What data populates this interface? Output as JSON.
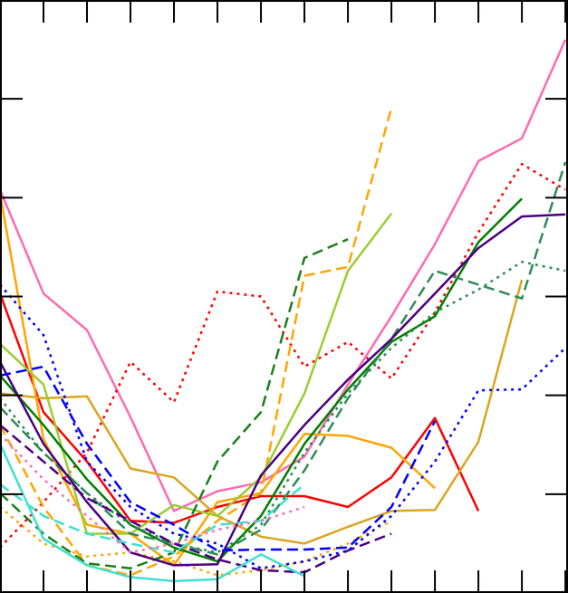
{
  "chart_data": {
    "type": "line",
    "x": [
      0,
      1,
      2,
      3,
      4,
      5,
      6,
      7,
      8,
      9,
      10,
      11,
      12,
      13
    ],
    "xlim": [
      0,
      13.06
    ],
    "ylim": [
      0,
      6
    ],
    "xticks": [
      0,
      1,
      2,
      3,
      4,
      5,
      6,
      7,
      8,
      9,
      10,
      11,
      12,
      13
    ],
    "yticks": [
      1,
      2,
      3,
      4,
      5
    ],
    "grid": false,
    "series": [
      {
        "color": "#ff69b4",
        "dash": "solid",
        "values": [
          4.08,
          3.03,
          2.66,
          1.78,
          0.83,
          1.03,
          1.12,
          1.38,
          2.11,
          2.8,
          3.53,
          4.37,
          4.6,
          5.6
        ]
      },
      {
        "color": "#ff0000",
        "dash": "solid",
        "values": [
          3.03,
          1.83,
          1.33,
          0.73,
          0.71,
          0.87,
          0.98,
          0.98,
          0.87,
          1.17,
          1.77,
          0.83,
          null,
          null
        ]
      },
      {
        "color": "#ff0000",
        "dash": "dotted",
        "values": [
          0.46,
          0.92,
          1.42,
          2.34,
          1.93,
          3.05,
          3.0,
          2.29,
          2.54,
          2.17,
          2.84,
          3.65,
          4.34,
          4.08
        ]
      },
      {
        "color": "#ffa500",
        "dash": "solid",
        "values": [
          4.04,
          1.56,
          0.69,
          0.6,
          0.28,
          0.92,
          1.01,
          1.61,
          1.59,
          1.47,
          1.06,
          null,
          null,
          null
        ]
      },
      {
        "color": "#ffa500",
        "dash": "dashed",
        "values": [
          1.7,
          0.87,
          0.28,
          0.18,
          0.37,
          0.73,
          1.01,
          3.21,
          3.3,
          4.91,
          null,
          null,
          null,
          null
        ]
      },
      {
        "color": "#ffa500",
        "dash": "dotted",
        "values": [
          0.87,
          0.5,
          0.37,
          0.41,
          0.32,
          0.18,
          0.23,
          0.32,
          0.5,
          0.73,
          null,
          null,
          null,
          null
        ]
      },
      {
        "color": "#daa520",
        "dash": "solid",
        "values": [
          2.02,
          1.97,
          1.99,
          1.26,
          1.17,
          0.78,
          0.57,
          0.5,
          0.67,
          0.83,
          0.84,
          1.53,
          3.17,
          null
        ]
      },
      {
        "color": "#9acd32",
        "dash": "solid",
        "values": [
          2.52,
          2.11,
          0.6,
          0.6,
          0.89,
          0.78,
          1.17,
          2.02,
          3.26,
          3.84,
          null,
          null,
          null,
          null
        ]
      },
      {
        "color": "#008000",
        "dash": "solid",
        "values": [
          2.2,
          1.7,
          1.15,
          0.69,
          0.46,
          0.32,
          0.78,
          1.51,
          2.06,
          2.54,
          2.8,
          3.55,
          3.99,
          null
        ]
      },
      {
        "color": "#1a7f1a",
        "dash": "dashed",
        "values": [
          1.01,
          0.6,
          0.3,
          0.25,
          0.41,
          1.33,
          1.83,
          3.39,
          3.58,
          null,
          null,
          null,
          null,
          null
        ]
      },
      {
        "color": "#2e8b57",
        "dash": "dashed",
        "values": [
          1.88,
          1.42,
          1.01,
          0.6,
          0.5,
          0.39,
          0.64,
          1.24,
          1.97,
          2.57,
          3.26,
          3.12,
          2.98,
          4.36
        ]
      },
      {
        "color": "#2e8b57",
        "dash": "dotted",
        "values": [
          1.97,
          1.42,
          1.01,
          0.69,
          0.5,
          0.41,
          0.69,
          1.42,
          2.02,
          2.48,
          2.84,
          3.07,
          3.35,
          3.26
        ]
      },
      {
        "color": "#4b0082",
        "dash": "solid",
        "values": [
          2.34,
          1.51,
          0.92,
          0.41,
          0.28,
          0.29,
          1.19,
          1.7,
          2.16,
          2.57,
          3.03,
          3.49,
          3.81,
          3.83
        ]
      },
      {
        "color": "#4b0082",
        "dash": "dashed",
        "values": [
          1.7,
          1.33,
          0.96,
          0.73,
          0.5,
          0.34,
          0.23,
          0.21,
          0.43,
          0.6,
          null,
          null,
          null,
          null
        ]
      },
      {
        "color": "#0000ff",
        "dash": "dashed",
        "values": [
          2.2,
          2.29,
          1.51,
          0.92,
          0.69,
          0.43,
          0.44,
          0.44,
          0.46,
          0.87,
          1.74,
          null,
          null,
          null
        ]
      },
      {
        "color": "#0000ff",
        "dash": "dotted",
        "values": [
          3.12,
          2.61,
          1.33,
          0.87,
          0.6,
          0.5,
          0.25,
          0.32,
          0.43,
          0.78,
          1.33,
          2.05,
          2.06,
          2.48
        ]
      },
      {
        "color": "#40e0d0",
        "dash": "solid",
        "values": [
          1.51,
          0.55,
          0.28,
          0.16,
          0.12,
          0.14,
          0.39,
          0.17,
          null,
          null,
          null,
          null,
          null,
          null
        ]
      },
      {
        "color": "#40e0d0",
        "dash": "dashed",
        "values": [
          1.1,
          0.78,
          0.6,
          0.5,
          0.41,
          0.69,
          0.73,
          1.1,
          null,
          null,
          null,
          null,
          null,
          null
        ]
      },
      {
        "color": "#ff69b4",
        "dash": "dotted",
        "values": [
          1.61,
          1.15,
          0.78,
          0.41,
          0.5,
          0.64,
          0.73,
          0.87,
          null,
          null,
          null,
          null,
          null,
          null
        ]
      }
    ]
  }
}
